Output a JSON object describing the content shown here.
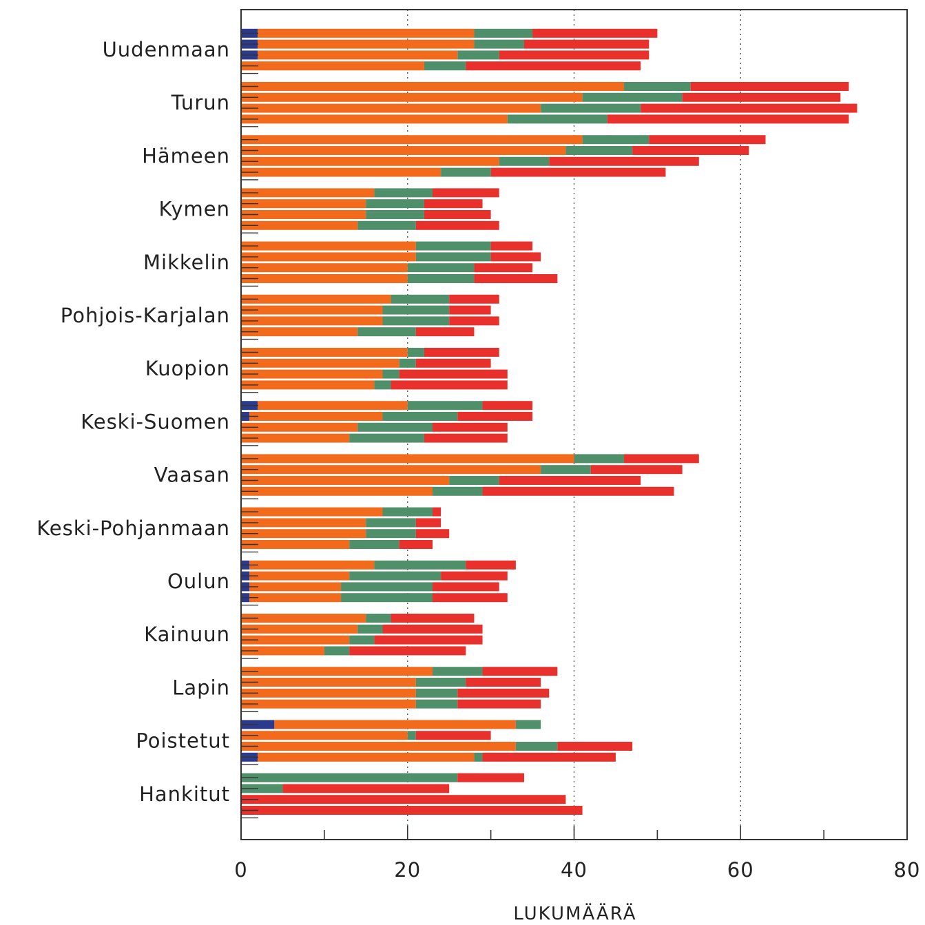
{
  "chart_data": {
    "type": "bar",
    "orientation": "horizontal",
    "stacked": true,
    "xlabel": "LUKUMÄÄRÄ",
    "xlim": [
      0,
      80
    ],
    "x_ticks": [
      "0",
      "20",
      "40",
      "60",
      "80"
    ],
    "grid": "dotted vertical lines at 20, 40, 60",
    "segment_colors": [
      "#2b3a8c",
      "#f26b1d",
      "#4f8f6a",
      "#e8302c"
    ],
    "categories": [
      {
        "name": "Uudenmaan",
        "bars": [
          [
            2,
            26,
            7,
            15
          ],
          [
            2,
            26,
            6,
            15
          ],
          [
            2,
            24,
            5,
            18
          ],
          [
            0,
            22,
            5,
            21
          ]
        ]
      },
      {
        "name": "Turun",
        "bars": [
          [
            0,
            46,
            8,
            19
          ],
          [
            0,
            41,
            12,
            19
          ],
          [
            0,
            36,
            12,
            26
          ],
          [
            0,
            32,
            12,
            29
          ]
        ]
      },
      {
        "name": "Hämeen",
        "bars": [
          [
            0,
            41,
            8,
            14
          ],
          [
            0,
            39,
            8,
            14
          ],
          [
            0,
            31,
            6,
            18
          ],
          [
            0,
            24,
            6,
            21
          ]
        ]
      },
      {
        "name": "Kymen",
        "bars": [
          [
            0,
            16,
            7,
            8
          ],
          [
            0,
            15,
            7,
            7
          ],
          [
            0,
            15,
            7,
            8
          ],
          [
            0,
            14,
            7,
            10
          ]
        ]
      },
      {
        "name": "Mikkelin",
        "bars": [
          [
            0,
            21,
            9,
            5
          ],
          [
            0,
            21,
            9,
            6
          ],
          [
            0,
            20,
            8,
            7
          ],
          [
            0,
            20,
            8,
            10
          ]
        ]
      },
      {
        "name": "Pohjois-Karjalan",
        "bars": [
          [
            0,
            18,
            7,
            6
          ],
          [
            0,
            17,
            8,
            5
          ],
          [
            0,
            17,
            8,
            6
          ],
          [
            0,
            14,
            7,
            7
          ]
        ]
      },
      {
        "name": "Kuopion",
        "bars": [
          [
            0,
            20,
            2,
            9
          ],
          [
            0,
            19,
            2,
            9
          ],
          [
            0,
            17,
            2,
            13
          ],
          [
            0,
            16,
            2,
            14
          ]
        ]
      },
      {
        "name": "Keski-Suomen",
        "bars": [
          [
            2,
            18,
            9,
            6
          ],
          [
            1,
            16,
            9,
            9
          ],
          [
            0,
            14,
            9,
            9
          ],
          [
            0,
            13,
            9,
            10
          ]
        ]
      },
      {
        "name": "Vaasan",
        "bars": [
          [
            0,
            40,
            6,
            9
          ],
          [
            0,
            36,
            6,
            11
          ],
          [
            0,
            25,
            6,
            17
          ],
          [
            0,
            23,
            6,
            23
          ]
        ]
      },
      {
        "name": "Keski-Pohjanmaan",
        "bars": [
          [
            0,
            17,
            6,
            1
          ],
          [
            0,
            15,
            6,
            3
          ],
          [
            0,
            15,
            6,
            4
          ],
          [
            0,
            13,
            6,
            4
          ]
        ]
      },
      {
        "name": "Oulun",
        "bars": [
          [
            1,
            15,
            11,
            6
          ],
          [
            1,
            12,
            11,
            8
          ],
          [
            1,
            11,
            11,
            8
          ],
          [
            1,
            11,
            11,
            9
          ]
        ]
      },
      {
        "name": "Kainuun",
        "bars": [
          [
            0,
            15,
            3,
            10
          ],
          [
            0,
            14,
            3,
            12
          ],
          [
            0,
            13,
            3,
            13
          ],
          [
            0,
            10,
            3,
            14
          ]
        ]
      },
      {
        "name": "Lapin",
        "bars": [
          [
            0,
            23,
            6,
            9
          ],
          [
            0,
            21,
            6,
            9
          ],
          [
            0,
            21,
            5,
            11
          ],
          [
            0,
            21,
            5,
            10
          ]
        ]
      },
      {
        "name": "Poistetut",
        "bars": [
          [
            4,
            29,
            3,
            0
          ],
          [
            0,
            20,
            1,
            9
          ],
          [
            0,
            33,
            5,
            9
          ],
          [
            2,
            26,
            1,
            16
          ]
        ]
      },
      {
        "name": "Hankitut",
        "bars": [
          [
            0,
            0,
            26,
            8
          ],
          [
            0,
            0,
            5,
            20
          ],
          [
            0,
            0,
            0,
            39
          ],
          [
            0,
            0,
            0,
            41
          ]
        ]
      }
    ]
  }
}
